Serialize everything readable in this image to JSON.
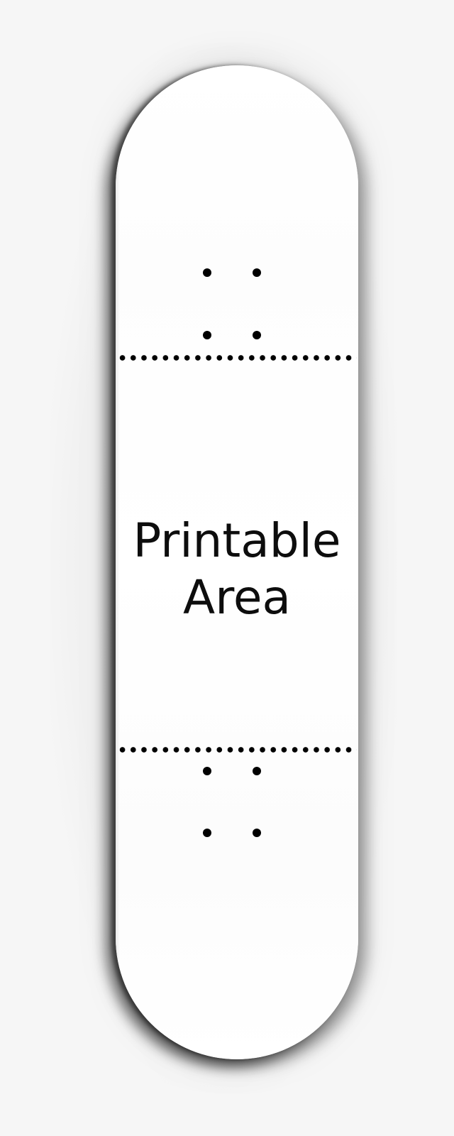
{
  "deck": {
    "printable_label_line1": "Printable",
    "printable_label_line2": "Area"
  },
  "colors": {
    "background": "#f6f6f6",
    "deck": "#ffffff",
    "marks": "#000000"
  }
}
